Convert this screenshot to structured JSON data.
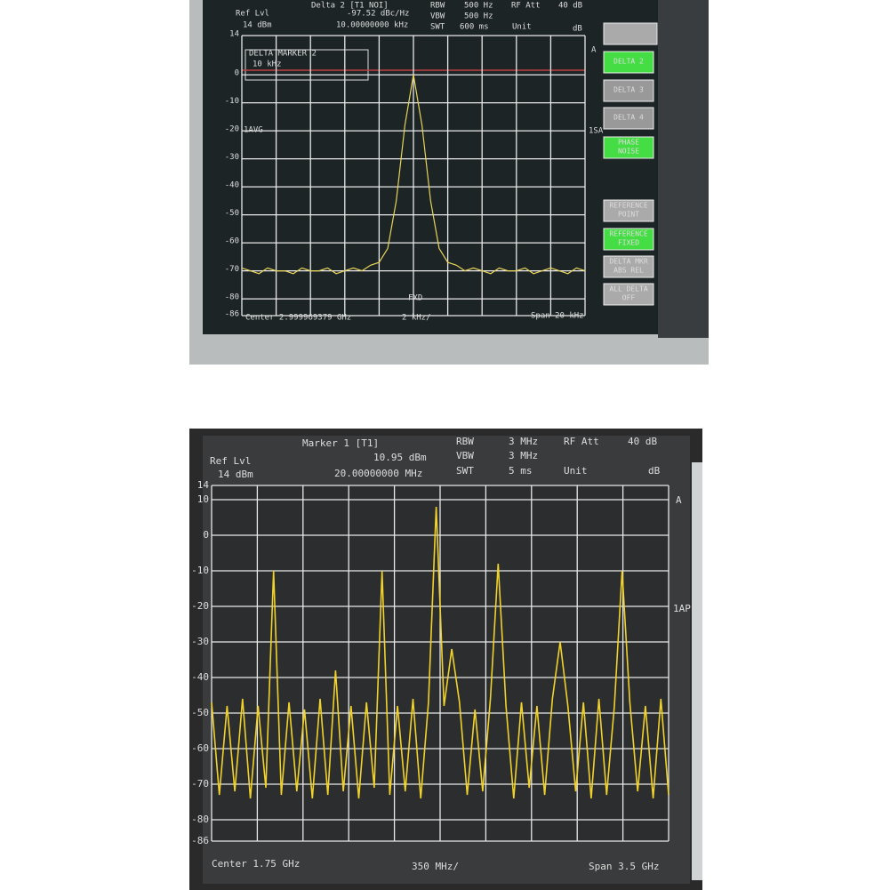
{
  "chart_data": [
    {
      "type": "line",
      "color": "#e8d45a",
      "ylim": [
        -86,
        14
      ],
      "yticks": [
        14,
        0,
        -10,
        -20,
        -30,
        -40,
        -50,
        -60,
        -70,
        -80,
        -86
      ],
      "grid": true,
      "values": [
        -69,
        -70,
        -71,
        -69,
        -70,
        -70,
        -71,
        -69,
        -70,
        -70,
        -69,
        -71,
        -70,
        -69,
        -70,
        -68,
        -67,
        -62,
        -45,
        -18,
        0,
        -18,
        -45,
        -62,
        -67,
        -68,
        -70,
        -69,
        -70,
        -71,
        -69,
        -70,
        -70,
        -69,
        -71,
        -70,
        -69,
        -70,
        -71,
        -69,
        -70
      ],
      "annotations": [
        "Delta 2 [T1 NOI]",
        "Ref Lvl",
        "14 dBm",
        "-97.52 dBc/Hz",
        "10.00000000 kHz",
        "RBW",
        "500 Hz",
        "VBW",
        "500 Hz",
        "SWT",
        "600 ms",
        "RF Att",
        "40 dB",
        "Unit",
        "dB",
        "DELTA MARKER 2",
        "10 kHz",
        "1AVG",
        "1SA",
        "A",
        "FXD",
        "Center 2.999969379 GHz",
        "2 kHz/",
        "Span 20 kHz"
      ],
      "softkeys": [
        [
          "DELTA 2"
        ],
        [
          "DELTA 3"
        ],
        [
          "DELTA 4"
        ],
        [
          "PHASE",
          "NOISE"
        ],
        [
          "REFERENCE",
          "POINT"
        ],
        [
          "REFERENCE",
          "FIXED"
        ],
        [
          "DELTA MKR",
          "ABS REL"
        ],
        [
          "ALL DELTA",
          "OFF"
        ]
      ]
    },
    {
      "type": "line",
      "color": "#f0d22a",
      "ylim": [
        -86,
        14
      ],
      "yticks": [
        14,
        10,
        0,
        -10,
        -20,
        -30,
        -40,
        -50,
        -60,
        -70,
        -80,
        -86
      ],
      "grid": true,
      "values": [
        -47,
        -73,
        -48,
        -72,
        -46,
        -74,
        -48,
        -71,
        -10,
        -73,
        -47,
        -72,
        -49,
        -74,
        -46,
        -73,
        -38,
        -72,
        -48,
        -74,
        -47,
        -71,
        -10,
        -73,
        -48,
        -72,
        -46,
        -74,
        -47,
        8,
        -48,
        -32,
        -47,
        -73,
        -49,
        -72,
        -46,
        -8,
        -48,
        -74,
        -47,
        -71,
        -48,
        -73,
        -46,
        -30,
        -48,
        -72,
        -47,
        -74,
        -46,
        -73,
        -48,
        -10,
        -47,
        -72,
        -48,
        -74,
        -46,
        -73
      ],
      "annotations": [
        "Marker 1 [T1]",
        "Ref Lvl",
        "14 dBm",
        "10.95 dBm",
        "20.00000000 MHz",
        "RBW",
        "3 MHz",
        "VBW",
        "3 MHz",
        "SWT",
        "5 ms",
        "RF Att",
        "40 dB",
        "Unit",
        "dB",
        "A",
        "1AP",
        "Center 1.75 GHz",
        "350 MHz/",
        "Span 3.5 GHz"
      ]
    }
  ]
}
